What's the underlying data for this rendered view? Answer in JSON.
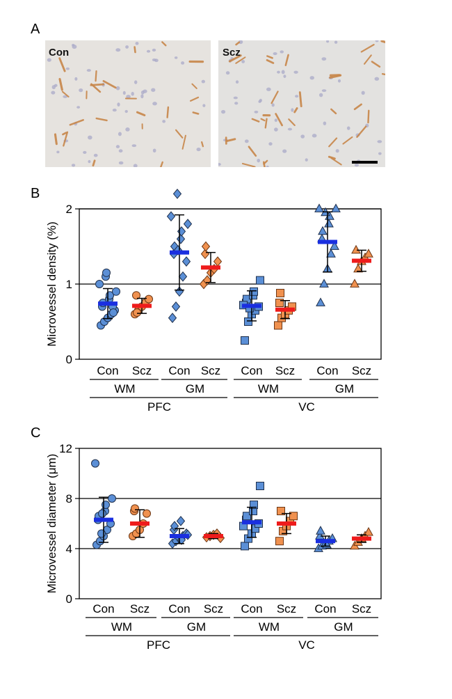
{
  "panels": {
    "a": {
      "letter": "A",
      "images": [
        {
          "label": "Con",
          "tint": "#e6e3df"
        },
        {
          "label": "Scz",
          "tint": "#e3e2e0"
        }
      ],
      "colors": {
        "nucleus": "#a9a9c8",
        "vessel": "#c8874a"
      }
    },
    "b": {
      "letter": "B"
    },
    "c": {
      "letter": "C"
    }
  },
  "colors": {
    "con_fill": "#5b8fd6",
    "scz_fill": "#f0914f",
    "con_mean": "#1a2fe0",
    "scz_mean": "#ee1c1c",
    "outline": "#1f2f4a",
    "scz_outline": "#6b3614"
  },
  "chart_data": [
    {
      "id": "b",
      "type": "scatter",
      "ylabel": "Microvessel density (%)",
      "ylim": [
        0,
        2.0
      ],
      "yticks": [
        0,
        1,
        2
      ],
      "gridlines": [
        1,
        2
      ],
      "category_labels": [
        "Con",
        "Scz",
        "Con",
        "Scz",
        "Con",
        "Scz",
        "Con",
        "Scz"
      ],
      "group_labels": [
        "WM",
        "GM",
        "WM",
        "GM"
      ],
      "region_labels": [
        "PFC",
        "VC"
      ],
      "series": [
        {
          "name": "PFC WM Con",
          "shape": "circle",
          "group": "con",
          "mean": 0.74,
          "sd": 0.2,
          "values": [
            0.45,
            0.5,
            0.55,
            0.6,
            0.65,
            0.7,
            0.75,
            0.8,
            0.85,
            0.9,
            1.0,
            1.1,
            1.15,
            0.7,
            0.62
          ]
        },
        {
          "name": "PFC WM Scz",
          "shape": "circle",
          "group": "scz",
          "mean": 0.71,
          "sd": 0.1,
          "values": [
            0.6,
            0.65,
            0.7,
            0.75,
            0.8,
            0.85,
            0.62
          ]
        },
        {
          "name": "PFC GM Con",
          "shape": "diamond",
          "group": "con",
          "mean": 1.42,
          "sd": 0.5,
          "values": [
            0.55,
            0.7,
            0.9,
            1.1,
            1.3,
            1.4,
            1.5,
            1.6,
            1.7,
            1.8,
            1.9,
            2.2,
            1.45
          ]
        },
        {
          "name": "PFC GM Scz",
          "shape": "diamond",
          "group": "scz",
          "mean": 1.22,
          "sd": 0.2,
          "values": [
            1.0,
            1.05,
            1.15,
            1.2,
            1.3,
            1.4,
            1.5
          ]
        },
        {
          "name": "VC WM Con",
          "shape": "square",
          "group": "con",
          "mean": 0.71,
          "sd": 0.2,
          "values": [
            0.25,
            0.5,
            0.6,
            0.65,
            0.7,
            0.75,
            0.8,
            0.85,
            0.9,
            1.05,
            0.72,
            0.68
          ]
        },
        {
          "name": "VC WM Scz",
          "shape": "square",
          "group": "scz",
          "mean": 0.66,
          "sd": 0.12,
          "values": [
            0.45,
            0.55,
            0.6,
            0.65,
            0.7,
            0.75,
            0.88
          ]
        },
        {
          "name": "VC GM Con",
          "shape": "triangle",
          "group": "con",
          "mean": 1.56,
          "sd": 0.4,
          "values": [
            0.75,
            1.0,
            1.2,
            1.4,
            1.5,
            1.6,
            1.7,
            1.8,
            1.9,
            2.0,
            2.0,
            1.95
          ]
        },
        {
          "name": "VC GM Scz",
          "shape": "triangle",
          "group": "scz",
          "mean": 1.31,
          "sd": 0.14,
          "values": [
            1.0,
            1.2,
            1.3,
            1.35,
            1.4,
            1.45
          ]
        }
      ]
    },
    {
      "id": "c",
      "type": "scatter",
      "ylabel": "Microvessel diameter (μm)",
      "ylim": [
        0,
        12
      ],
      "yticks": [
        0,
        4,
        8,
        12
      ],
      "gridlines": [
        4,
        8
      ],
      "category_labels": [
        "Con",
        "Scz",
        "Con",
        "Scz",
        "Con",
        "Scz",
        "Con",
        "Scz"
      ],
      "group_labels": [
        "WM",
        "GM",
        "WM",
        "GM"
      ],
      "region_labels": [
        "PFC",
        "VC"
      ],
      "series": [
        {
          "name": "PFC WM Con",
          "shape": "circle",
          "group": "con",
          "mean": 6.3,
          "sd": 1.8,
          "values": [
            4.3,
            4.6,
            5.0,
            5.5,
            6.0,
            6.3,
            6.6,
            7.0,
            7.5,
            8.0,
            10.8,
            5.2,
            6.8
          ]
        },
        {
          "name": "PFC WM Scz",
          "shape": "circle",
          "group": "scz",
          "mean": 6.0,
          "sd": 1.1,
          "values": [
            5.0,
            5.2,
            5.5,
            6.0,
            6.8,
            7.0,
            7.2
          ]
        },
        {
          "name": "PFC GM Con",
          "shape": "diamond",
          "group": "con",
          "mean": 5.0,
          "sd": 0.6,
          "values": [
            4.4,
            4.6,
            4.8,
            5.0,
            5.2,
            5.5,
            5.8,
            6.2,
            4.7,
            5.1
          ]
        },
        {
          "name": "PFC GM Scz",
          "shape": "diamond",
          "group": "scz",
          "mean": 5.0,
          "sd": 0.2,
          "values": [
            4.9,
            5.0,
            5.1,
            5.2,
            4.85
          ]
        },
        {
          "name": "VC WM Con",
          "shape": "square",
          "group": "con",
          "mean": 6.1,
          "sd": 1.2,
          "values": [
            4.2,
            4.8,
            5.2,
            5.6,
            6.0,
            6.3,
            6.6,
            7.0,
            7.5,
            9.0,
            5.8
          ]
        },
        {
          "name": "VC WM Scz",
          "shape": "square",
          "group": "scz",
          "mean": 6.0,
          "sd": 0.8,
          "values": [
            4.6,
            5.4,
            5.8,
            6.2,
            6.6,
            7.0
          ]
        },
        {
          "name": "VC GM Con",
          "shape": "triangle",
          "group": "con",
          "mean": 4.6,
          "sd": 0.4,
          "values": [
            4.0,
            4.2,
            4.4,
            4.6,
            4.8,
            5.0,
            5.4,
            4.3
          ]
        },
        {
          "name": "VC GM Scz",
          "shape": "triangle",
          "group": "scz",
          "mean": 4.8,
          "sd": 0.3,
          "values": [
            4.2,
            4.5,
            4.8,
            5.0,
            5.3
          ]
        }
      ]
    }
  ]
}
